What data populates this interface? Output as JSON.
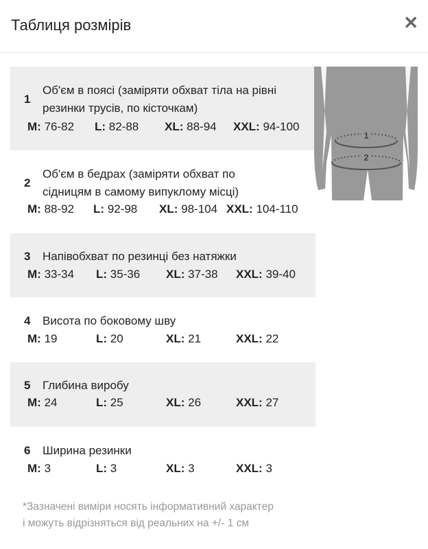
{
  "header": {
    "title": "Таблиця розмірів",
    "close_icon": "close-icon"
  },
  "rows": [
    {
      "num": "1",
      "desc": "Об'єм в поясі (заміряти обхват тіла на рівні резинки трусів, по кісточкам)",
      "sizes": [
        {
          "label": "M:",
          "value": "76-82"
        },
        {
          "label": "L:",
          "value": "82-88"
        },
        {
          "label": "XL:",
          "value": "88-94"
        },
        {
          "label": "XXL:",
          "value": "94-100"
        }
      ]
    },
    {
      "num": "2",
      "desc": "Об'єм в бедрах (заміряти обхват по сідницям в самому випуклому місці)",
      "sizes": [
        {
          "label": "M:",
          "value": "88-92"
        },
        {
          "label": "L:",
          "value": "92-98"
        },
        {
          "label": "XL:",
          "value": "98-104"
        },
        {
          "label": "XXL:",
          "value": "104-110"
        }
      ]
    },
    {
      "num": "3",
      "desc": "Напівобхват по резинці без натяжки",
      "sizes": [
        {
          "label": "M:",
          "value": "33-34"
        },
        {
          "label": "L:",
          "value": "35-36"
        },
        {
          "label": "XL:",
          "value": "37-38"
        },
        {
          "label": "XXL:",
          "value": "39-40"
        }
      ]
    },
    {
      "num": "4",
      "desc": "Висота по боковому шву",
      "sizes": [
        {
          "label": "M:",
          "value": "19"
        },
        {
          "label": "L:",
          "value": "20"
        },
        {
          "label": "XL:",
          "value": "21"
        },
        {
          "label": "XXL:",
          "value": "22"
        }
      ]
    },
    {
      "num": "5",
      "desc": "Глибина виробу",
      "sizes": [
        {
          "label": "M:",
          "value": "24"
        },
        {
          "label": "L:",
          "value": "25"
        },
        {
          "label": "XL:",
          "value": "26"
        },
        {
          "label": "XXL:",
          "value": "27"
        }
      ]
    },
    {
      "num": "6",
      "desc": "Ширина резинки",
      "sizes": [
        {
          "label": "M:",
          "value": "3"
        },
        {
          "label": "L:",
          "value": "3"
        },
        {
          "label": "XL:",
          "value": "3"
        },
        {
          "label": "XXL:",
          "value": "3"
        }
      ]
    }
  ],
  "figure": {
    "labels": [
      "1",
      "2"
    ]
  },
  "note": {
    "line1": "*Зазначені виміри носять інформативний характер",
    "line2": "і можуть відрізняться від реальних на +/- 1 см"
  }
}
